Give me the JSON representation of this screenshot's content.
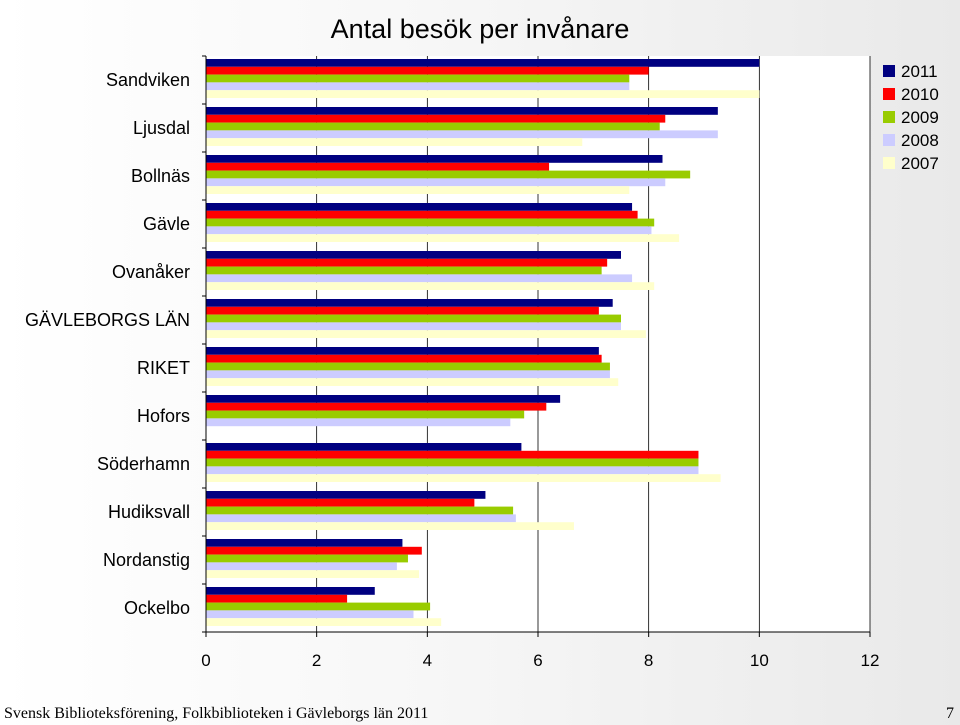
{
  "chart_data": {
    "type": "bar",
    "orientation": "horizontal",
    "title": "Antal besök per invånare",
    "categories": [
      "Sandviken",
      "Ljusdal",
      "Bollnäs",
      "Gävle",
      "Ovanåker",
      "GÄVLEBORGS LÄN",
      "RIKET",
      "Hofors",
      "Söderhamn",
      "Hudiksvall",
      "Nordanstig",
      "Ockelbo"
    ],
    "series": [
      {
        "name": "2011",
        "color": "#000080",
        "values": [
          10.0,
          9.25,
          8.25,
          7.7,
          7.5,
          7.35,
          7.1,
          6.4,
          5.7,
          5.05,
          3.55,
          3.05
        ]
      },
      {
        "name": "2010",
        "color": "#ff0000",
        "values": [
          8.0,
          8.3,
          6.2,
          7.8,
          7.25,
          7.1,
          7.15,
          6.15,
          8.9,
          4.85,
          3.9,
          2.55
        ]
      },
      {
        "name": "2009",
        "color": "#99cc00",
        "values": [
          7.65,
          8.2,
          8.75,
          8.1,
          7.15,
          7.5,
          7.3,
          5.75,
          8.9,
          5.55,
          3.65,
          4.05
        ]
      },
      {
        "name": "2008",
        "color": "#ccccff",
        "values": [
          7.65,
          9.25,
          8.3,
          8.05,
          7.7,
          7.5,
          7.3,
          5.5,
          8.9,
          5.6,
          3.45,
          3.75
        ]
      },
      {
        "name": "2007",
        "color": "#ffffcc",
        "values": [
          10.0,
          6.8,
          7.65,
          8.55,
          8.1,
          7.95,
          7.45,
          null,
          9.3,
          6.65,
          3.85,
          4.25
        ]
      }
    ],
    "xlim": [
      0,
      12
    ],
    "xticks": [
      "0",
      "2",
      "4",
      "6",
      "8",
      "10",
      "12"
    ],
    "xlabel": "",
    "ylabel": "",
    "grid": "vertical",
    "legend": "top-right"
  },
  "footer": {
    "left": "Svensk Biblioteksförening, Folkbiblioteken i Gävleborgs län 2011",
    "page": "7"
  }
}
